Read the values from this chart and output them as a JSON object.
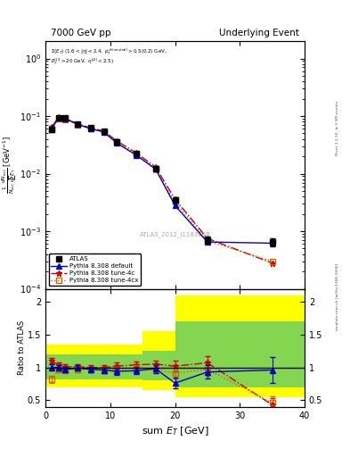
{
  "title_left": "7000 GeV pp",
  "title_right": "Underlying Event",
  "annotation": "ATLAS_2012_I1183818",
  "right_label": "mcplots.cern.ch [arXiv:1306.3436]",
  "rivet_label": "Rivet 3.1.10, ≥ 3.5M events",
  "ylabel_ratio": "Ratio to ATLAS",
  "xlabel": "sum E_T [GeV]",
  "xlim": [
    0,
    40
  ],
  "ylim_main": [
    0.0001,
    2.0
  ],
  "ylim_ratio": [
    0.4,
    2.2
  ],
  "atlas_x": [
    1.0,
    2.0,
    3.0,
    5.0,
    7.0,
    9.0,
    11.0,
    14.0,
    17.0,
    20.0,
    25.0,
    35.0
  ],
  "atlas_y": [
    0.058,
    0.092,
    0.092,
    0.072,
    0.062,
    0.055,
    0.036,
    0.022,
    0.012,
    0.0035,
    0.0007,
    0.00065
  ],
  "atlas_yerr": [
    0.006,
    0.006,
    0.006,
    0.005,
    0.004,
    0.004,
    0.003,
    0.002,
    0.001,
    0.0004,
    0.0001,
    0.0001
  ],
  "pythia_default_x": [
    1.0,
    2.0,
    3.0,
    5.0,
    7.0,
    9.0,
    11.0,
    14.0,
    17.0,
    20.0,
    25.0,
    35.0
  ],
  "pythia_default_y": [
    0.062,
    0.092,
    0.09,
    0.072,
    0.06,
    0.053,
    0.034,
    0.021,
    0.012,
    0.0028,
    0.00065,
    0.00062
  ],
  "pythia_4c_x": [
    1.0,
    2.0,
    3.0,
    5.0,
    7.0,
    9.0,
    11.0,
    14.0,
    17.0,
    20.0,
    25.0,
    35.0
  ],
  "pythia_4c_y": [
    0.065,
    0.095,
    0.093,
    0.073,
    0.062,
    0.055,
    0.037,
    0.023,
    0.013,
    0.0036,
    0.00075,
    0.00028
  ],
  "pythia_4cx_x": [
    1.0,
    2.0,
    3.0,
    5.0,
    7.0,
    9.0,
    11.0,
    14.0,
    17.0,
    20.0,
    25.0,
    35.0
  ],
  "pythia_4cx_y": [
    0.06,
    0.09,
    0.088,
    0.07,
    0.06,
    0.053,
    0.035,
    0.022,
    0.012,
    0.0032,
    0.00068,
    0.0003
  ],
  "ratio_pythia_default": [
    1.0,
    1.0,
    0.97,
    0.99,
    0.97,
    0.96,
    0.94,
    0.95,
    0.98,
    0.76,
    0.93,
    0.96
  ],
  "ratio_pythia_default_err": [
    0.05,
    0.04,
    0.04,
    0.04,
    0.04,
    0.04,
    0.05,
    0.05,
    0.06,
    0.08,
    0.1,
    0.2
  ],
  "ratio_pythia_4c": [
    1.1,
    1.03,
    1.01,
    1.01,
    1.0,
    1.0,
    1.02,
    1.04,
    1.05,
    1.02,
    1.07,
    0.43
  ],
  "ratio_pythia_4c_err": [
    0.05,
    0.04,
    0.04,
    0.04,
    0.04,
    0.04,
    0.05,
    0.05,
    0.06,
    0.08,
    0.1,
    0.1
  ],
  "ratio_pythia_4cx": [
    0.82,
    0.97,
    0.96,
    0.97,
    0.97,
    0.96,
    0.97,
    0.99,
    0.97,
    0.91,
    0.97,
    0.46
  ],
  "ratio_pythia_4cx_err": [
    0.05,
    0.04,
    0.04,
    0.04,
    0.04,
    0.04,
    0.05,
    0.05,
    0.06,
    0.08,
    0.1,
    0.1
  ],
  "band_edges": [
    0,
    5,
    10,
    15,
    20,
    40
  ],
  "yellow_lo": [
    0.7,
    0.7,
    0.7,
    0.65,
    0.55,
    0.55
  ],
  "yellow_hi": [
    1.35,
    1.35,
    1.35,
    1.55,
    2.1,
    2.1
  ],
  "green_lo": [
    0.82,
    0.82,
    0.82,
    0.8,
    0.7,
    0.7
  ],
  "green_hi": [
    1.2,
    1.2,
    1.2,
    1.25,
    1.7,
    1.7
  ],
  "color_atlas": "#000000",
  "color_default": "#0000cc",
  "color_4c": "#cc0000",
  "color_4cx": "#cc6600",
  "color_yellow": "#ffff00",
  "color_green": "#66cc66"
}
